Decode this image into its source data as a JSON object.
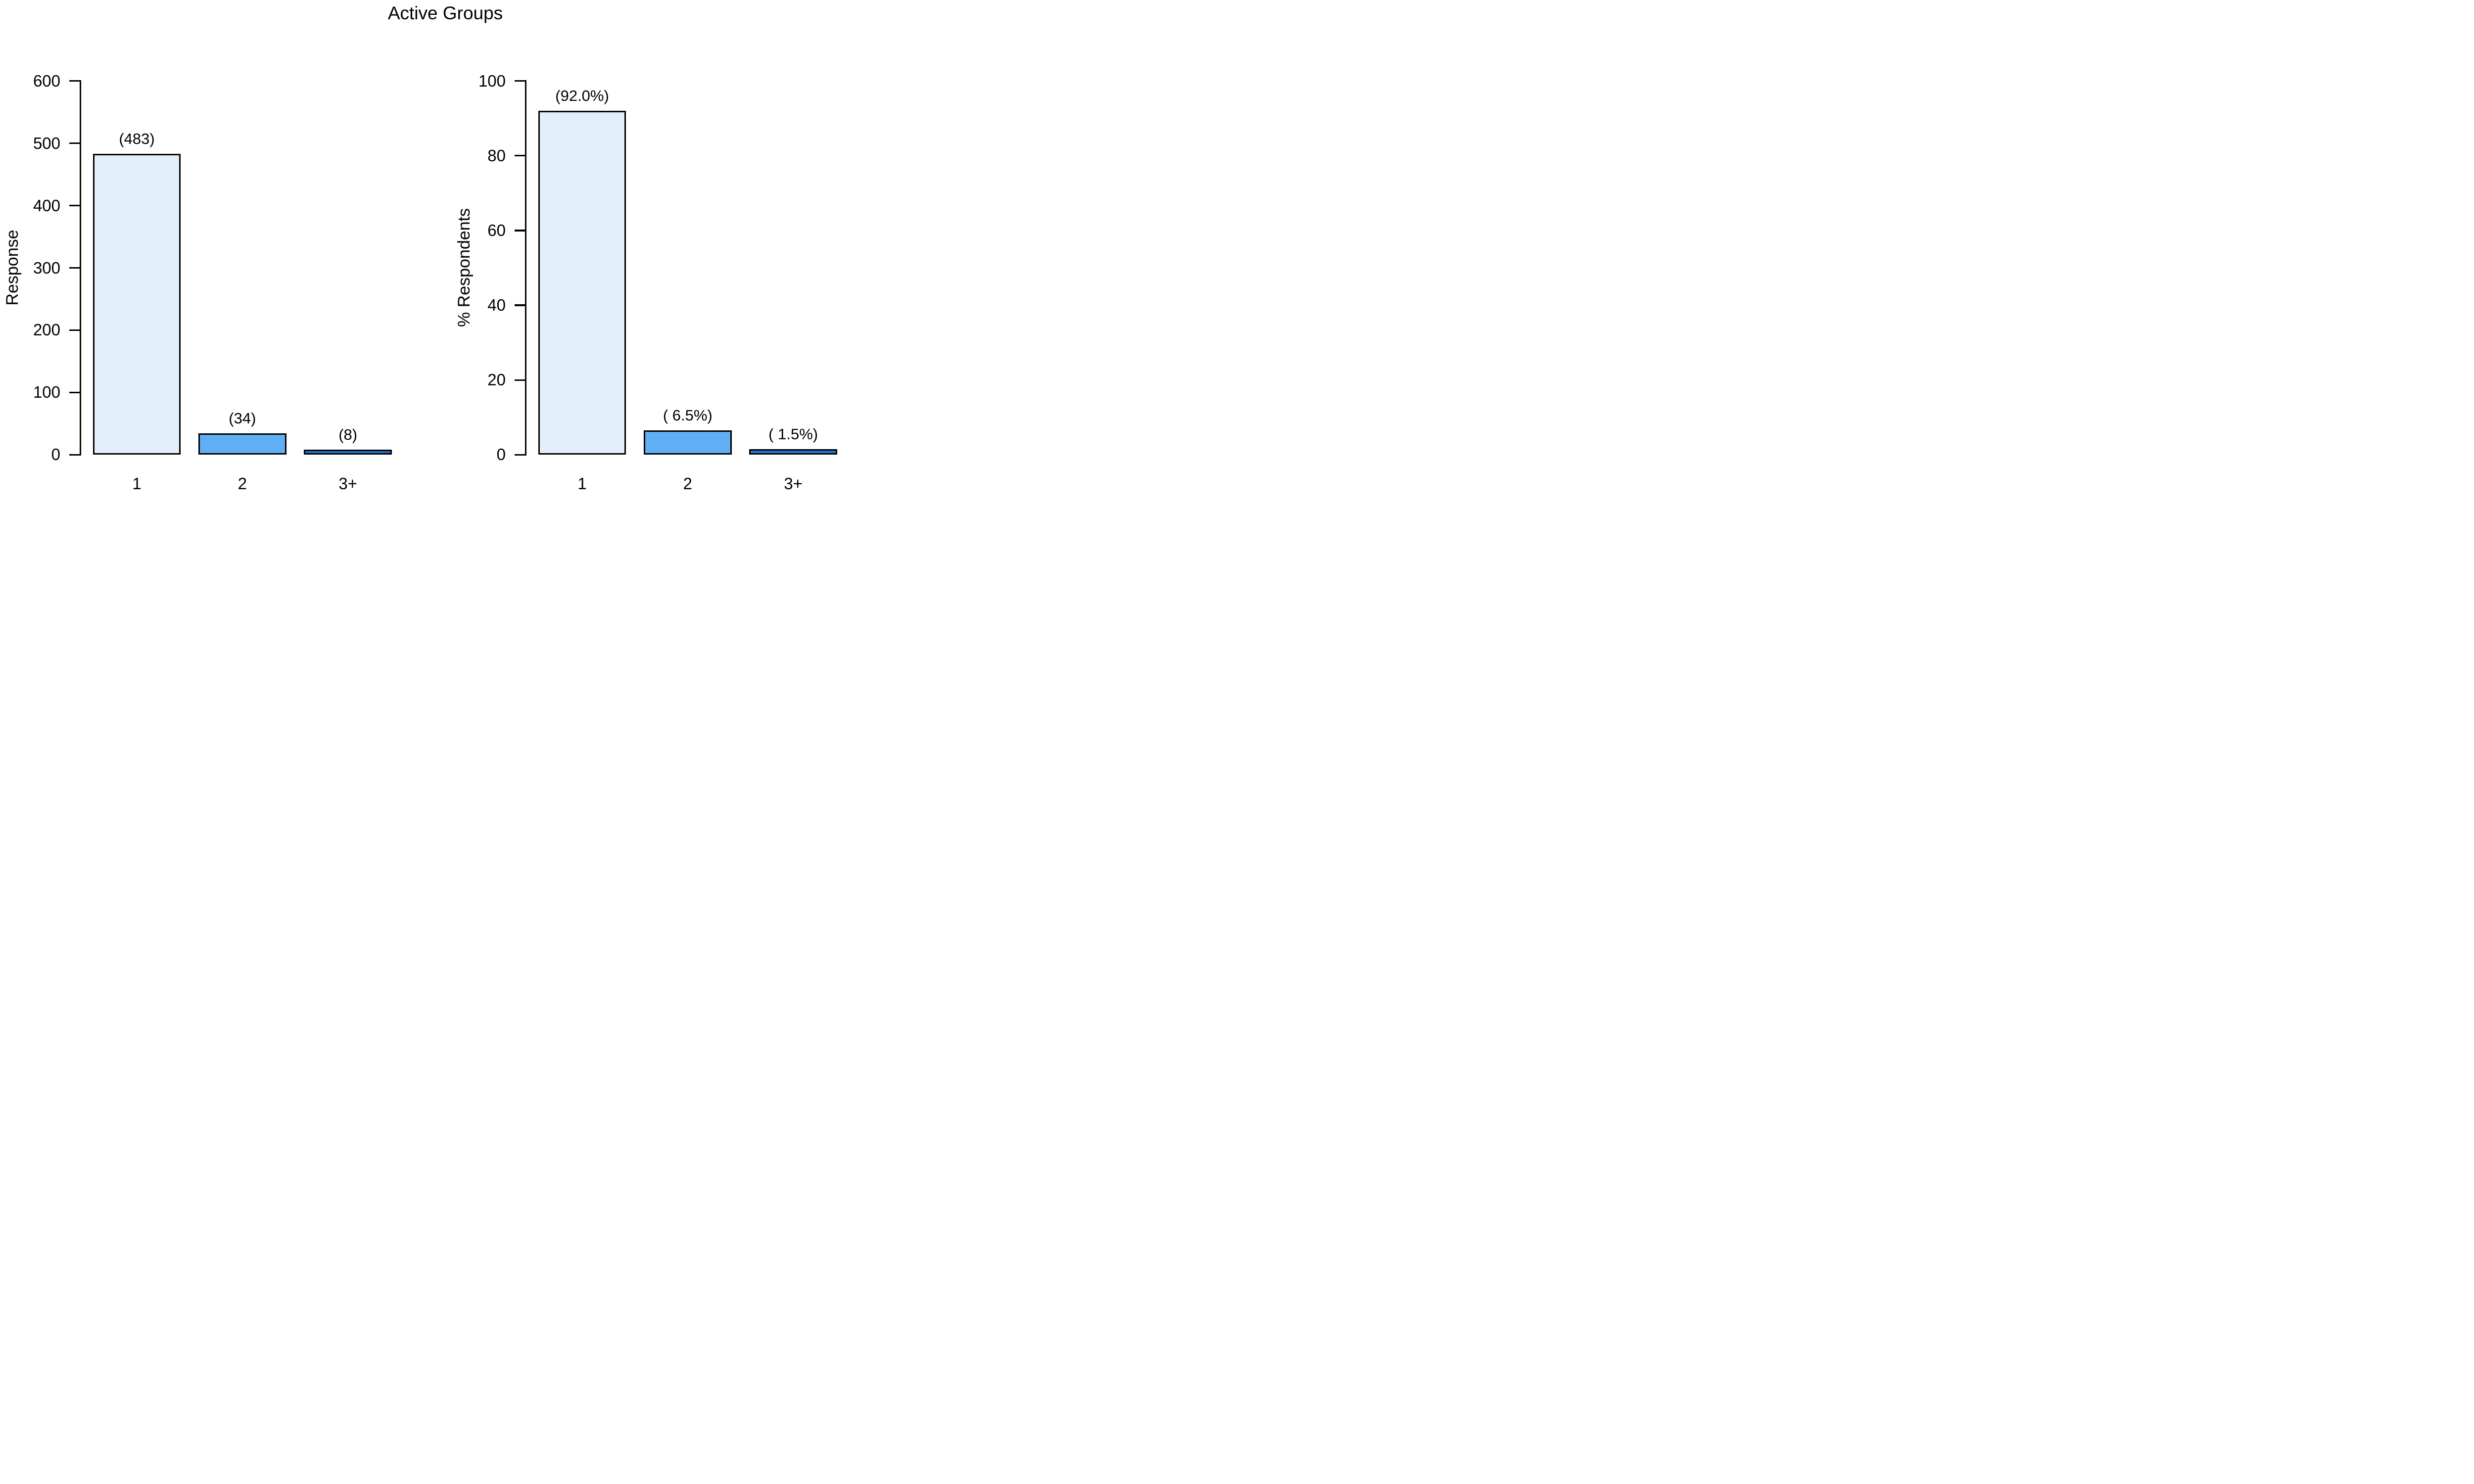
{
  "page": {
    "background": "#ffffff",
    "text_color": "#000000",
    "title": "Active Groups"
  },
  "chart_data": [
    {
      "type": "bar",
      "panel": "left",
      "title": "Active Groups",
      "xlabel": "",
      "ylabel": "Response",
      "categories": [
        "1",
        "2",
        "3+"
      ],
      "values": [
        483,
        34,
        8
      ],
      "bar_labels": [
        "(483)",
        "(34)",
        "(8)"
      ],
      "ylim": [
        0,
        600
      ],
      "yticks": [
        0,
        100,
        200,
        300,
        400,
        500,
        600
      ],
      "ytick_labels": [
        "0",
        "100",
        "200",
        "300",
        "400",
        "500",
        "600"
      ],
      "grid": false,
      "legend": null,
      "bar_colors": [
        "#E3F0FC",
        "#60AFF4",
        "#1C77D6"
      ],
      "bar_border_color": "#000000",
      "axis_color": "#000000"
    },
    {
      "type": "bar",
      "panel": "right",
      "title": "Active Groups",
      "xlabel": "",
      "ylabel": "% Respondents",
      "categories": [
        "1",
        "2",
        "3+"
      ],
      "values": [
        92.0,
        6.5,
        1.5
      ],
      "bar_labels": [
        "(92.0%)",
        "( 6.5%)",
        "( 1.5%)"
      ],
      "ylim": [
        0,
        100
      ],
      "yticks": [
        0,
        20,
        40,
        60,
        80,
        100
      ],
      "ytick_labels": [
        "0",
        "20",
        "40",
        "60",
        "80",
        "100"
      ],
      "grid": false,
      "legend": null,
      "bar_colors": [
        "#E3F0FC",
        "#60AFF4",
        "#1C77D6"
      ],
      "bar_border_color": "#000000",
      "axis_color": "#000000"
    }
  ]
}
